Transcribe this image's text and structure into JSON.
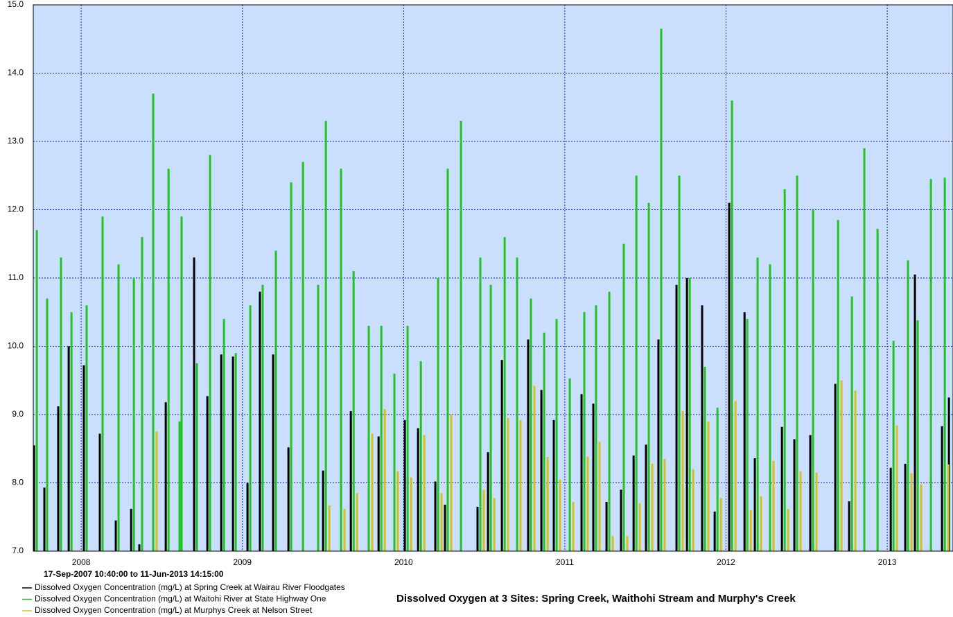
{
  "chart_data": {
    "type": "bar",
    "title": "Dissolved Oxygen at 3 Sites: Spring Creek, Waithohi Stream and Murphy's Creek",
    "period": "17-Sep-2007 10:40:00 to 11-Jun-2013 14:15:00",
    "xlim": [
      2007.703,
      2013.408
    ],
    "xticks": [
      2008,
      2009,
      2010,
      2011,
      2012,
      2013
    ],
    "ylim": [
      7,
      15
    ],
    "yticks": [
      {
        "value": 7,
        "label": "7.0"
      },
      {
        "value": 8,
        "label": "8.0"
      },
      {
        "value": 9,
        "label": "9.0"
      },
      {
        "value": 10,
        "label": "10.0"
      },
      {
        "value": 11,
        "label": "11.0"
      },
      {
        "value": 12,
        "label": "12.0"
      },
      {
        "value": 13,
        "label": "13.0"
      },
      {
        "value": 14,
        "label": "14.0"
      },
      {
        "value": 15,
        "label": "15.0"
      }
    ],
    "grid": true,
    "x": [
      2007.725,
      2007.789,
      2007.875,
      2007.94,
      2008.034,
      2008.133,
      2008.232,
      2008.327,
      2008.378,
      2008.447,
      2008.542,
      2008.61,
      2008.623,
      2008.718,
      2008.8,
      2008.886,
      2008.959,
      2009.049,
      2009.126,
      2009.208,
      2009.303,
      2009.376,
      2009.47,
      2009.518,
      2009.612,
      2009.69,
      2009.784,
      2009.862,
      2009.943,
      2010.025,
      2010.107,
      2010.214,
      2010.274,
      2010.356,
      2010.476,
      2010.541,
      2010.627,
      2010.704,
      2010.79,
      2010.872,
      2010.949,
      2011.031,
      2011.121,
      2011.194,
      2011.276,
      2011.366,
      2011.444,
      2011.521,
      2011.598,
      2011.71,
      2011.775,
      2011.869,
      2011.947,
      2012.037,
      2012.132,
      2012.196,
      2012.273,
      2012.364,
      2012.441,
      2012.54,
      2012.695,
      2012.781,
      2012.858,
      2012.94,
      2013.039,
      2013.129,
      2013.189,
      2013.271,
      2013.357,
      2013.4
    ],
    "series": [
      {
        "name": "Dissolved Oxygen Concentration (mg/L) at Spring Creek at Wairau River Floodgates",
        "color": "#000000",
        "values": [
          8.55,
          7.93,
          9.12,
          10.0,
          9.72,
          8.72,
          7.45,
          7.62,
          7.1,
          null,
          9.18,
          null,
          null,
          11.3,
          9.27,
          9.88,
          9.85,
          8.0,
          10.8,
          9.88,
          8.52,
          null,
          null,
          8.18,
          null,
          9.05,
          null,
          8.68,
          null,
          8.92,
          8.8,
          8.02,
          7.68,
          null,
          7.65,
          8.45,
          9.8,
          null,
          10.1,
          9.36,
          8.92,
          null,
          9.3,
          9.16,
          7.72,
          7.9,
          8.4,
          8.56,
          10.1,
          10.9,
          11.0,
          10.6,
          7.58,
          12.1,
          10.5,
          8.36,
          null,
          8.82,
          8.64,
          8.7,
          9.45,
          7.73,
          null,
          null,
          8.22,
          8.28,
          11.05,
          null,
          8.83,
          9.25
        ]
      },
      {
        "name": "Dissolved Oxygen Concentration (mg/L) at Waitohi River at State Highway One",
        "color": "#22c322",
        "values": [
          11.7,
          10.7,
          11.3,
          10.5,
          10.6,
          11.9,
          11.2,
          11.0,
          11.6,
          13.7,
          12.6,
          8.9,
          11.9,
          9.75,
          12.8,
          10.4,
          9.9,
          10.6,
          10.9,
          11.4,
          12.4,
          12.7,
          10.9,
          13.3,
          12.6,
          11.1,
          10.3,
          10.3,
          9.6,
          10.3,
          9.78,
          11.0,
          12.6,
          13.3,
          11.3,
          10.9,
          11.6,
          11.3,
          10.7,
          10.2,
          10.4,
          9.53,
          10.5,
          10.6,
          10.8,
          11.5,
          12.5,
          12.1,
          14.65,
          12.5,
          11.0,
          9.7,
          9.1,
          13.6,
          10.4,
          11.3,
          11.2,
          12.3,
          12.5,
          12.0,
          11.85,
          10.73,
          12.9,
          11.72,
          10.08,
          11.26,
          10.38,
          12.45,
          12.47,
          null
        ]
      },
      {
        "name": "Dissolved Oxygen Concentration (mg/L) at Murphys Creek at Nelson Street",
        "color": "#d4c21c",
        "values": [
          null,
          null,
          null,
          null,
          null,
          null,
          null,
          null,
          null,
          8.75,
          null,
          null,
          null,
          null,
          null,
          null,
          null,
          null,
          null,
          null,
          null,
          null,
          null,
          7.67,
          7.62,
          7.85,
          8.72,
          9.08,
          8.17,
          8.08,
          8.7,
          7.85,
          9.0,
          null,
          7.9,
          7.78,
          8.95,
          8.92,
          9.42,
          8.38,
          8.05,
          7.72,
          8.38,
          8.6,
          7.22,
          7.22,
          7.7,
          8.28,
          8.35,
          9.05,
          8.2,
          8.9,
          7.78,
          9.2,
          7.6,
          7.8,
          8.32,
          7.62,
          8.17,
          8.15,
          9.5,
          9.35,
          null,
          null,
          8.84,
          8.14,
          7.98,
          null,
          8.27,
          null
        ]
      }
    ]
  }
}
